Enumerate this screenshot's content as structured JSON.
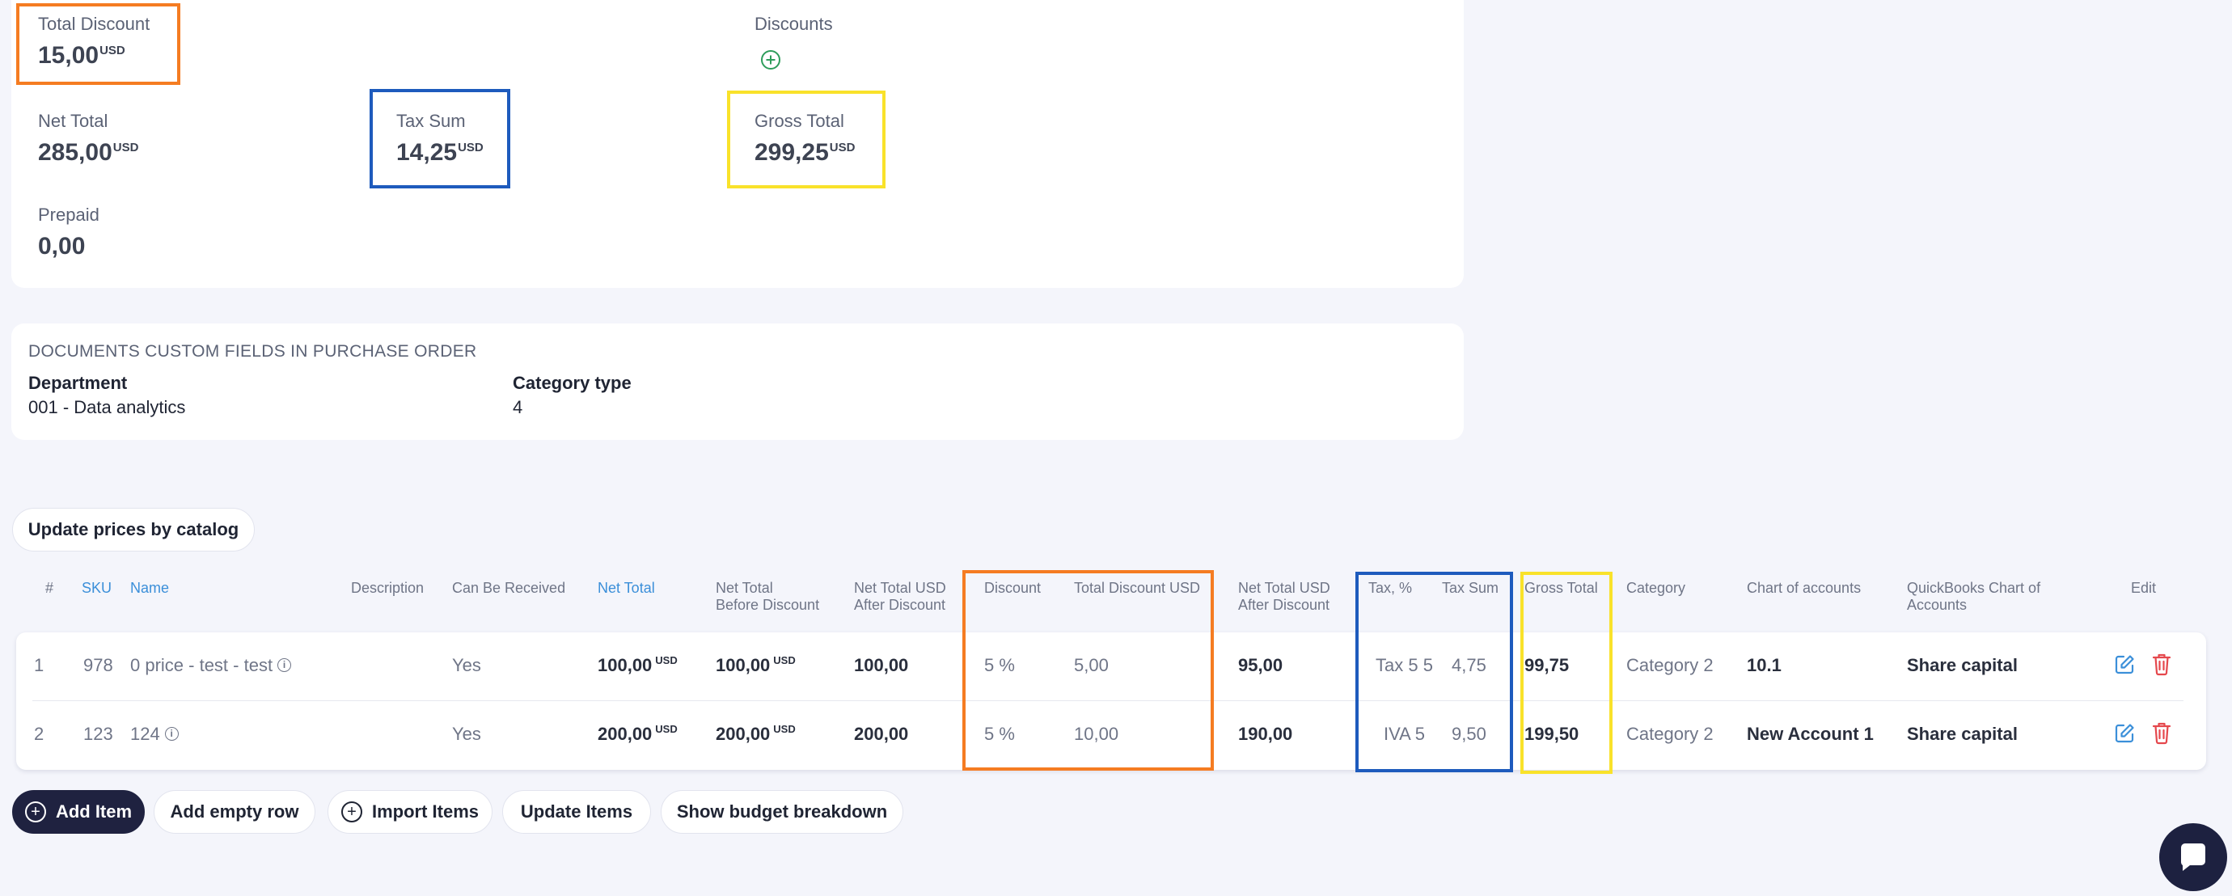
{
  "summary": {
    "total_discount": {
      "label": "Total Discount",
      "value": "15,00",
      "currency": "USD"
    },
    "discounts": {
      "label": "Discounts"
    },
    "net_total": {
      "label": "Net Total",
      "value": "285,00",
      "currency": "USD"
    },
    "tax_sum": {
      "label": "Tax Sum",
      "value": "14,25",
      "currency": "USD"
    },
    "gross_total": {
      "label": "Gross Total",
      "value": "299,25",
      "currency": "USD"
    },
    "prepaid": {
      "label": "Prepaid",
      "value": "0,00"
    }
  },
  "custom_fields": {
    "title": "DOCUMENTS CUSTOM FIELDS IN PURCHASE ORDER",
    "fields": [
      {
        "label": "Department",
        "value": "001 - Data analytics"
      },
      {
        "label": "Category type",
        "value": "4"
      }
    ]
  },
  "update_prices_button": "Update prices by catalog",
  "table": {
    "headers": {
      "num": "#",
      "sku": "SKU",
      "name": "Name",
      "description": "Description",
      "can_be_received": "Can Be Received",
      "net_total": "Net Total",
      "net_total_before_discount": [
        "Net Total",
        "Before Discount"
      ],
      "net_total_usd_after_discount": [
        "Net Total USD",
        "After Discount"
      ],
      "discount": "Discount",
      "total_discount_usd": "Total Discount USD",
      "net_total_usd_after_discount_2": [
        "Net Total USD",
        "After Discount"
      ],
      "tax_percent": "Tax, %",
      "tax_sum": "Tax Sum",
      "gross_total": "Gross Total",
      "category": "Category",
      "chart_of_accounts": "Chart of accounts",
      "quickbooks_chart": [
        "QuickBooks Chart of",
        "Accounts"
      ],
      "edit": "Edit"
    },
    "rows": [
      {
        "num": "1",
        "sku": "978",
        "name": "0 price - test - test",
        "can_be_received": "Yes",
        "net_total": "100,00",
        "net_total_before_discount": "100,00",
        "currency": "USD",
        "net_total_usd_after_discount": "100,00",
        "discount": "5 %",
        "total_discount_usd": "5,00",
        "net_total_usd_after_discount_2": "95,00",
        "tax_name": "Tax 5 5",
        "tax_sum": "4,75",
        "gross_total": "99,75",
        "category": "Category 2",
        "chart_of_accounts": "10.1",
        "quickbooks_chart": "Share capital"
      },
      {
        "num": "2",
        "sku": "123",
        "name": "124",
        "can_be_received": "Yes",
        "net_total": "200,00",
        "net_total_before_discount": "200,00",
        "currency": "USD",
        "net_total_usd_after_discount": "200,00",
        "discount": "5 %",
        "total_discount_usd": "10,00",
        "net_total_usd_after_discount_2": "190,00",
        "tax_name": "IVA 5",
        "tax_sum": "9,50",
        "gross_total": "199,50",
        "category": "Category 2",
        "chart_of_accounts": "New Account 1",
        "quickbooks_chart": "Share capital"
      }
    ]
  },
  "actions": {
    "add_item": "Add Item",
    "add_empty_row": "Add empty row",
    "import_items": "Import Items",
    "update_items": "Update Items",
    "show_budget_breakdown": "Show budget breakdown"
  },
  "colors": {
    "highlight_discount": "#f57c22",
    "highlight_tax": "#1e5bbd",
    "highlight_gross": "#f9e22a",
    "primary_dark": "#1f2240",
    "link": "#3b8fd9",
    "edit_icon": "#3b8fd9",
    "delete_icon": "#e5484d",
    "add_discount_icon": "#2e9d5b"
  },
  "icons": {
    "add_discount": "plus-circle-icon",
    "edit": "edit-icon",
    "delete": "trash-icon",
    "info": "info-icon",
    "chat": "chat-icon"
  }
}
